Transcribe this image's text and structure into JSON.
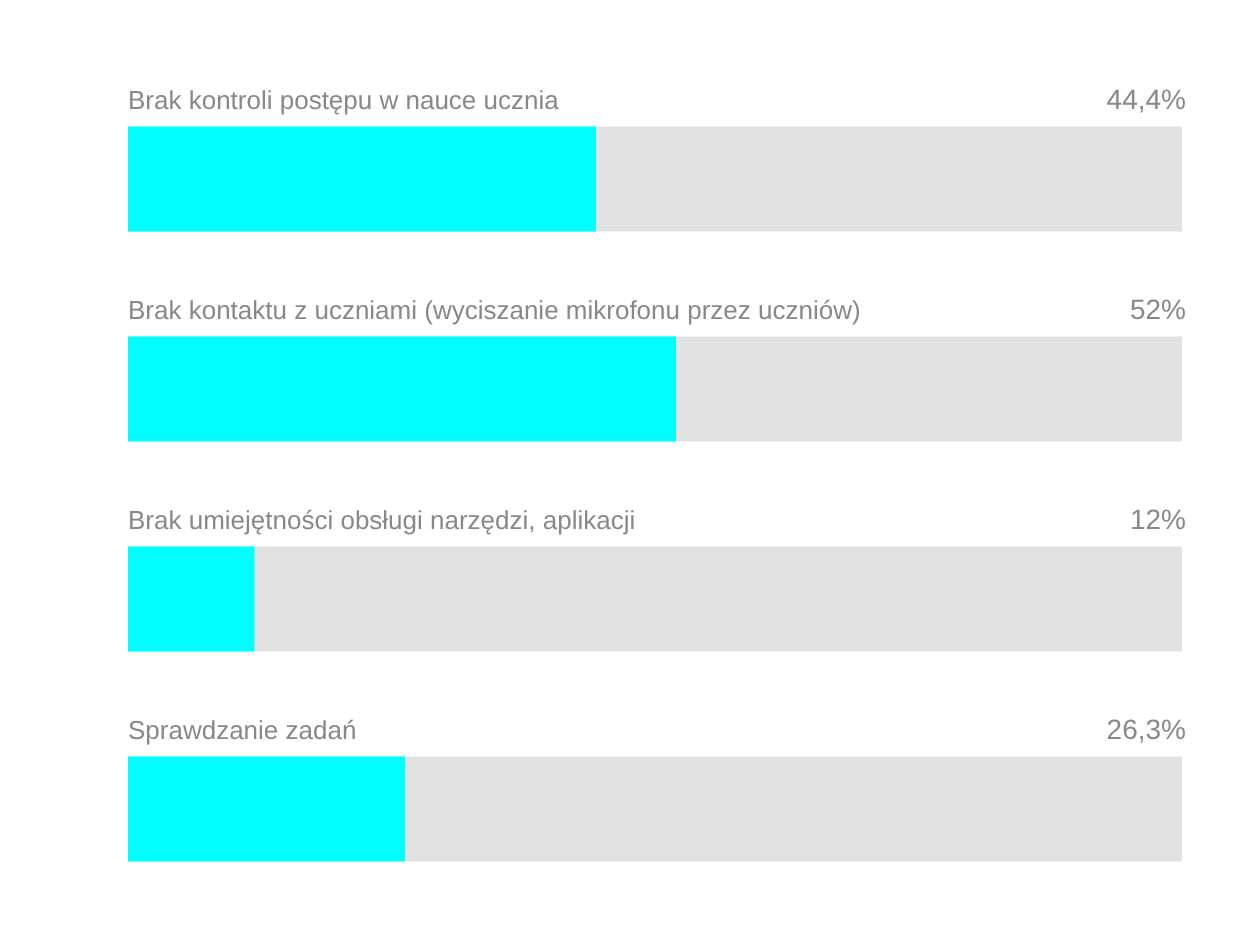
{
  "chart_data": {
    "type": "bar",
    "orientation": "horizontal",
    "categories": [
      "Brak kontroli postępu w nauce ucznia",
      "Brak kontaktu z uczniami (wyciszanie mikrofonu przez uczniów)",
      "Brak umiejętności obsługi narzędzi, aplikacji",
      "Sprawdzanie zadań"
    ],
    "series": [
      {
        "color": "#00ffff",
        "values": [
          44.4,
          52,
          12,
          26.3
        ],
        "value_labels": [
          "44,4%",
          "52%",
          "12%",
          "26,3%"
        ]
      }
    ],
    "xlim": [
      0,
      100
    ],
    "tick_labels": false
  }
}
